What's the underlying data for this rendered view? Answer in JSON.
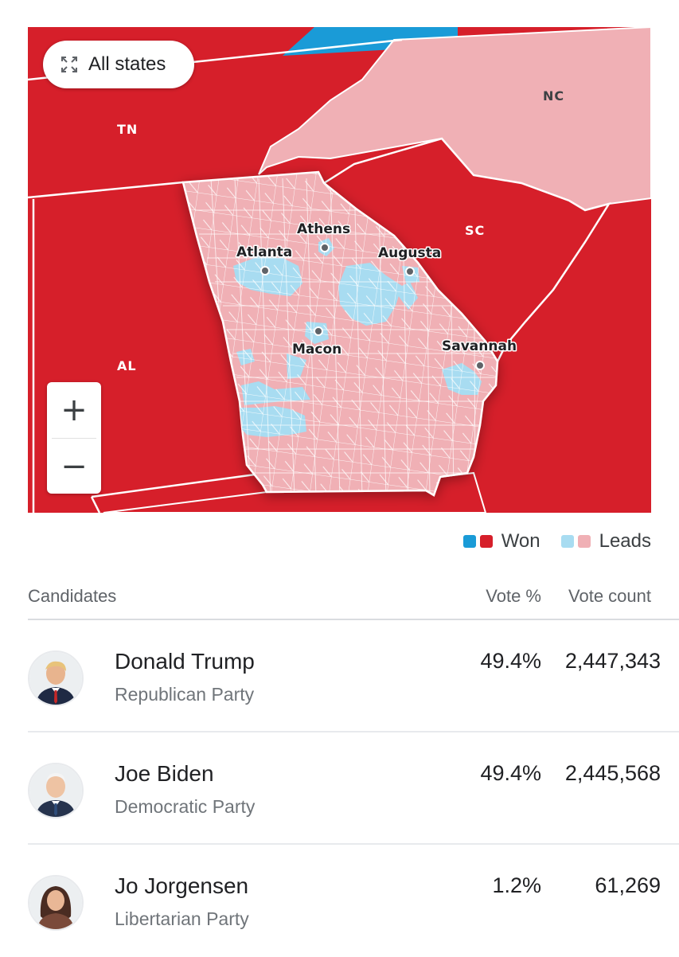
{
  "map": {
    "all_states_label": "All states",
    "zoom_in_label": "+",
    "zoom_out_label": "−",
    "states": [
      {
        "code": "TN"
      },
      {
        "code": "NC"
      },
      {
        "code": "SC"
      },
      {
        "code": "AL"
      }
    ],
    "cities": [
      "Atlanta",
      "Athens",
      "Augusta",
      "Macon",
      "Savannah"
    ],
    "colors": {
      "won_dem": "#1a9bd7",
      "won_rep": "#d61f2a",
      "leads_dem": "#a8dcf1",
      "leads_rep": "#f0b0b5"
    }
  },
  "legend": {
    "won_label": "Won",
    "leads_label": "Leads"
  },
  "table": {
    "headers": {
      "candidates": "Candidates",
      "vote_pct": "Vote %",
      "vote_count": "Vote count"
    },
    "candidates": [
      {
        "name": "Donald Trump",
        "party": "Republican Party",
        "vote_pct": "49.4%",
        "vote_count": "2,447,343"
      },
      {
        "name": "Joe Biden",
        "party": "Democratic Party",
        "vote_pct": "49.4%",
        "vote_count": "2,445,568"
      },
      {
        "name": "Jo Jorgensen",
        "party": "Libertarian Party",
        "vote_pct": "1.2%",
        "vote_count": "61,269"
      }
    ]
  }
}
